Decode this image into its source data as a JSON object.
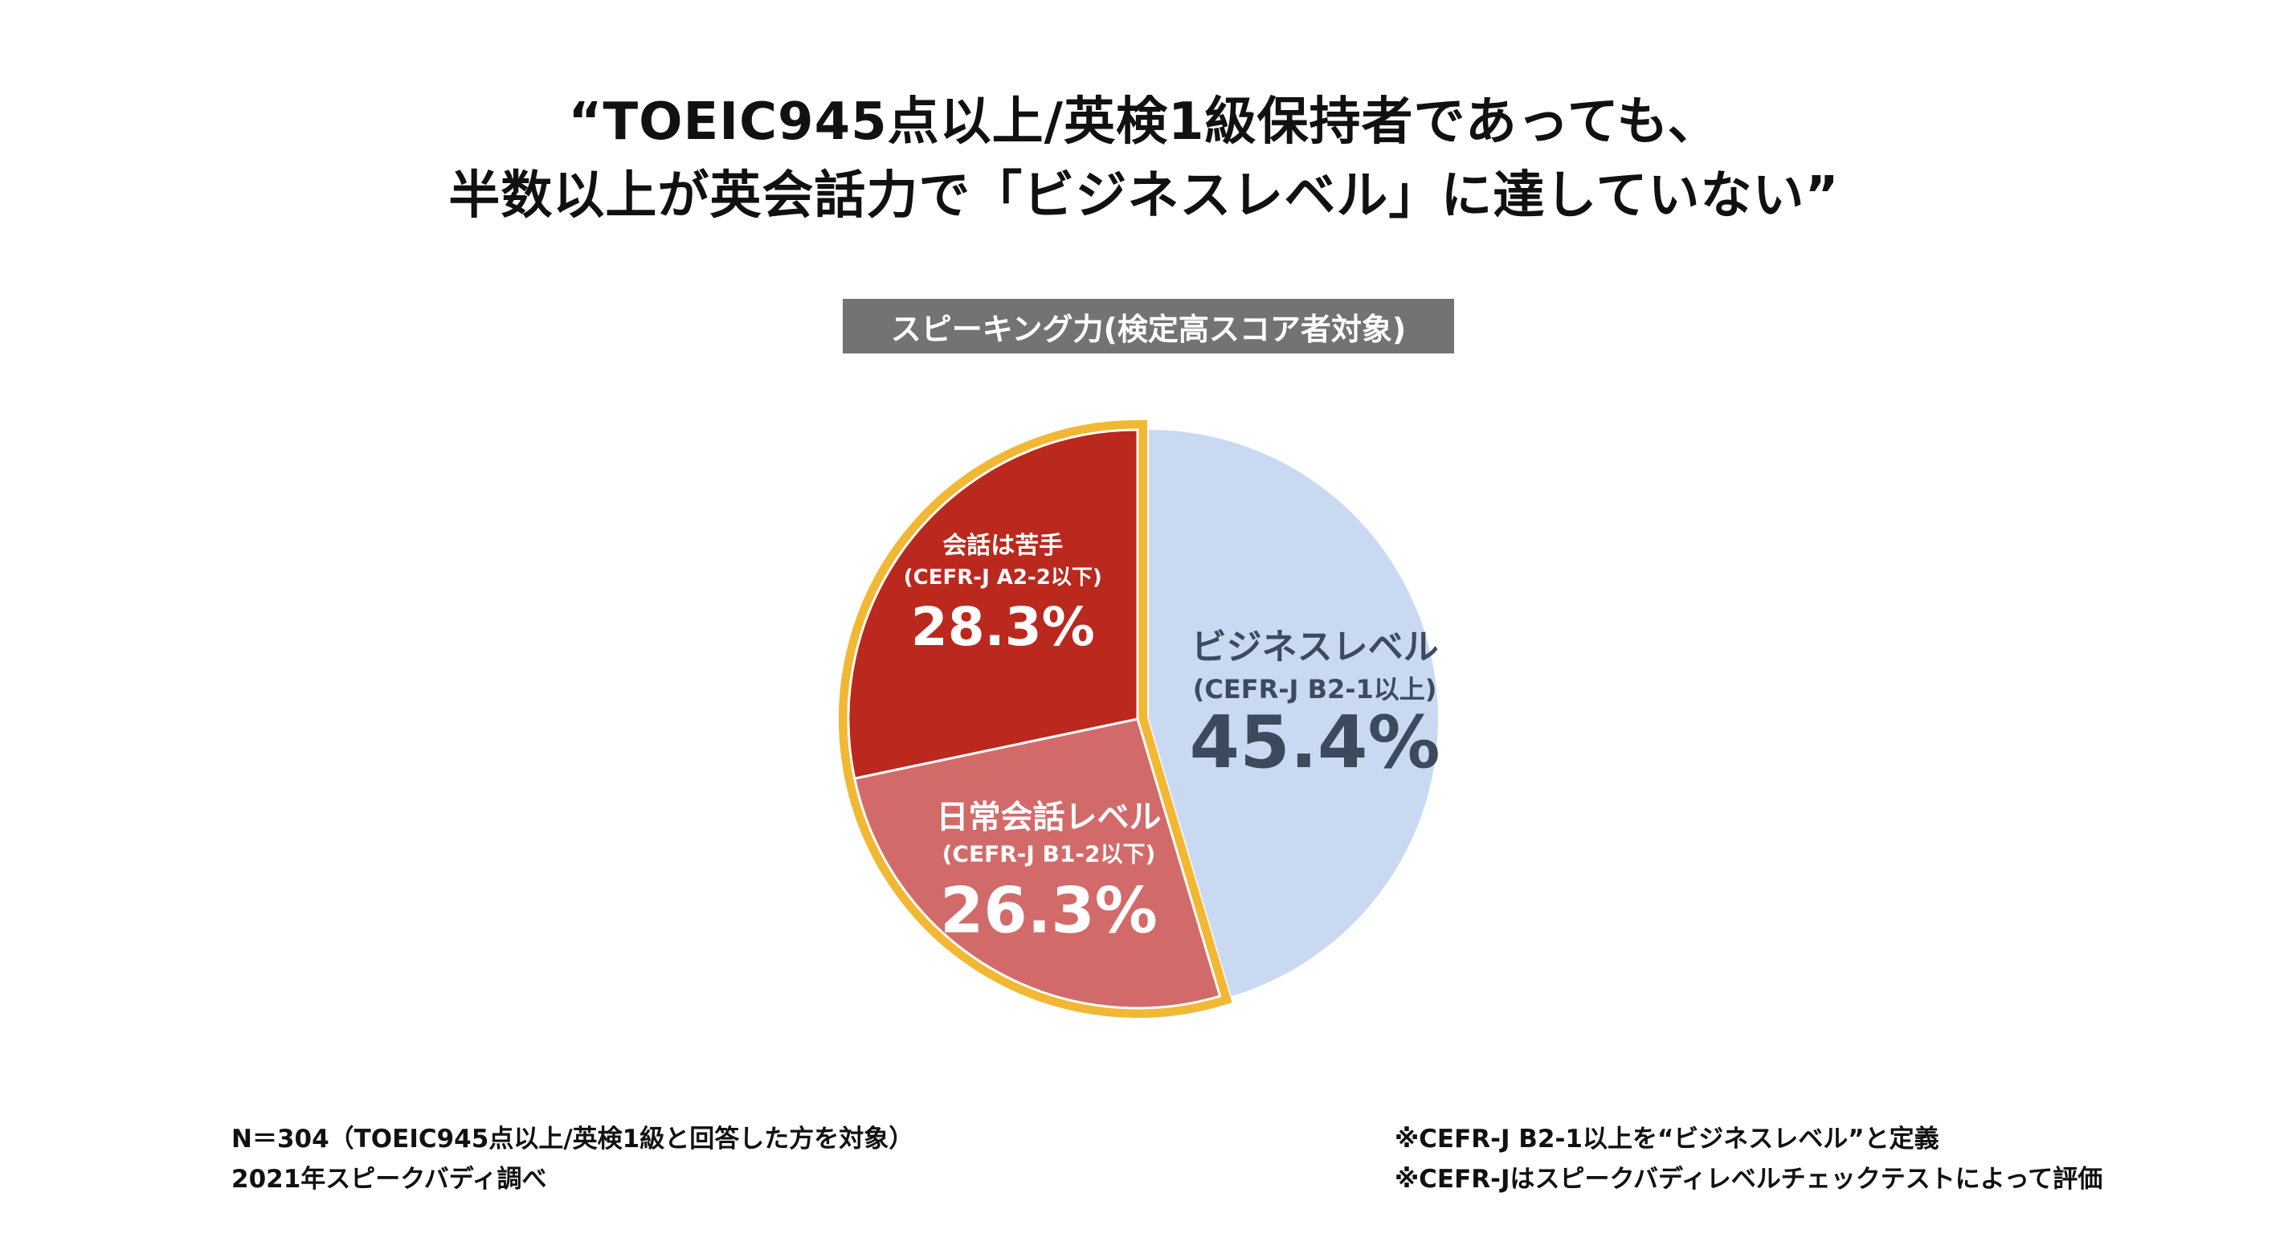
{
  "header": {
    "title_line1": "“TOEIC945点以上/英検1級保持者であっても、",
    "title_line2": "半数以上が英会話力で「ビジネスレベル」に達していない”",
    "subtitle": "スピーキング力(検定高スコア者対象)"
  },
  "chart_data": {
    "type": "pie",
    "title": "スピーキング力(検定高スコア者対象)",
    "slices": [
      {
        "name": "ビジネスレベル",
        "sublabel": "(CEFR-J B2-1以上)",
        "value": 45.4,
        "value_label": "45.4%",
        "color": "#c9d9f2",
        "text_color": "#3c4a5c",
        "highlighted": false
      },
      {
        "name": "日常会話レベル",
        "sublabel": "(CEFR-J B1-2以下)",
        "value": 26.3,
        "value_label": "26.3%",
        "color": "#d36a6a",
        "text_color": "#ffffff",
        "highlighted": true
      },
      {
        "name": "会話は苦手",
        "sublabel": "(CEFR-J A2-2以下)",
        "value": 28.3,
        "value_label": "28.3%",
        "color": "#bb281e",
        "text_color": "#ffffff",
        "highlighted": true
      }
    ],
    "start_angle_deg": 0,
    "direction": "clockwise",
    "highlight_color": "#f2b733"
  },
  "footnotes": {
    "left_line1": "N＝304（TOEIC945点以上/英検1級と回答した方を対象）",
    "left_line2": "2021年スピークバディ調べ",
    "right_line1": "※CEFR-J B2-1以上を“ビジネスレベル”と定義",
    "right_line2": "※CEFR-Jはスピークバディレベルチェックテストによって評価"
  }
}
